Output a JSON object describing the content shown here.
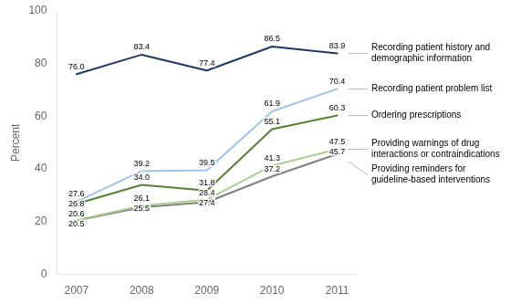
{
  "chart_data": {
    "type": "line",
    "x": [
      2007,
      2008,
      2009,
      2010,
      2011
    ],
    "xlim": [
      2006.7,
      2011.3
    ],
    "xticks": [
      2007,
      2008,
      2009,
      2010,
      2011
    ],
    "ylabel": "Percent",
    "ylim": [
      0,
      100
    ],
    "yticks": [
      0,
      20,
      40,
      60,
      80,
      100
    ],
    "grid": false,
    "legend": "right",
    "data_labels": true,
    "series": [
      {
        "name": "Recording patient history and\ndemographic information",
        "color": "#1f3864",
        "values": [
          76.0,
          83.4,
          77.4,
          86.5,
          83.9
        ],
        "value_labels": [
          "76.0",
          "83.4",
          "77.4",
          "86.5",
          "83.9"
        ]
      },
      {
        "name": "Recording patient problem list",
        "color": "#9dc3e6",
        "values": [
          27.6,
          39.2,
          39.5,
          61.9,
          70.4
        ],
        "value_labels": [
          "27.6",
          "39.2",
          "39.5",
          "61.9",
          "70.4"
        ]
      },
      {
        "name": "Ordering prescriptions",
        "color": "#548235",
        "values": [
          26.8,
          34.0,
          31.8,
          55.1,
          60.3
        ],
        "value_labels": [
          "26.8",
          "34.0",
          "31.8",
          "55.1",
          "60.3"
        ]
      },
      {
        "name": "Providing warnings of drug\ninteractions or contraindications",
        "color": "#a9d18e",
        "values": [
          20.6,
          26.1,
          28.4,
          41.3,
          47.5
        ],
        "value_labels": [
          "20.6",
          "26.1",
          "28.4",
          "41.3",
          "47.5"
        ]
      },
      {
        "name": "Providing reminders for\nguideline-based interventions",
        "color": "#808080",
        "values": [
          20.5,
          25.5,
          27.4,
          37.2,
          45.7
        ],
        "value_labels": [
          "20.5",
          "25.5",
          "27.4",
          "37.2",
          "45.7"
        ]
      }
    ]
  }
}
